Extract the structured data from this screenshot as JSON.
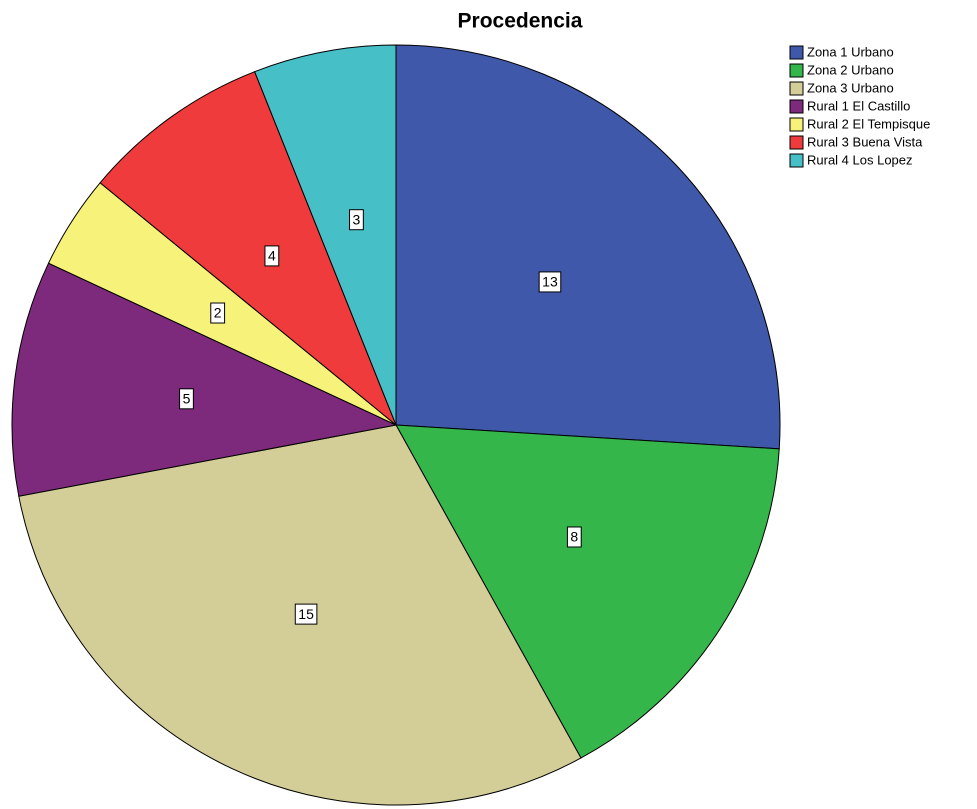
{
  "chart_data": {
    "type": "pie",
    "title": "Procedencia",
    "categories": [
      "Zona 1 Urbano",
      "Zona 2 Urbano",
      "Zona 3 Urbano",
      "Rural 1 El Castillo",
      "Rural 2 El Tempisque",
      "Rural 3 Buena Vista",
      "Rural 4 Los Lopez"
    ],
    "values": [
      13,
      8,
      15,
      5,
      2,
      4,
      3
    ],
    "colors": [
      "#3f58a9",
      "#34b64a",
      "#d3cd98",
      "#7d2a7c",
      "#f7f27a",
      "#ef3b3b",
      "#47bfc6"
    ],
    "legend": "top-right"
  }
}
